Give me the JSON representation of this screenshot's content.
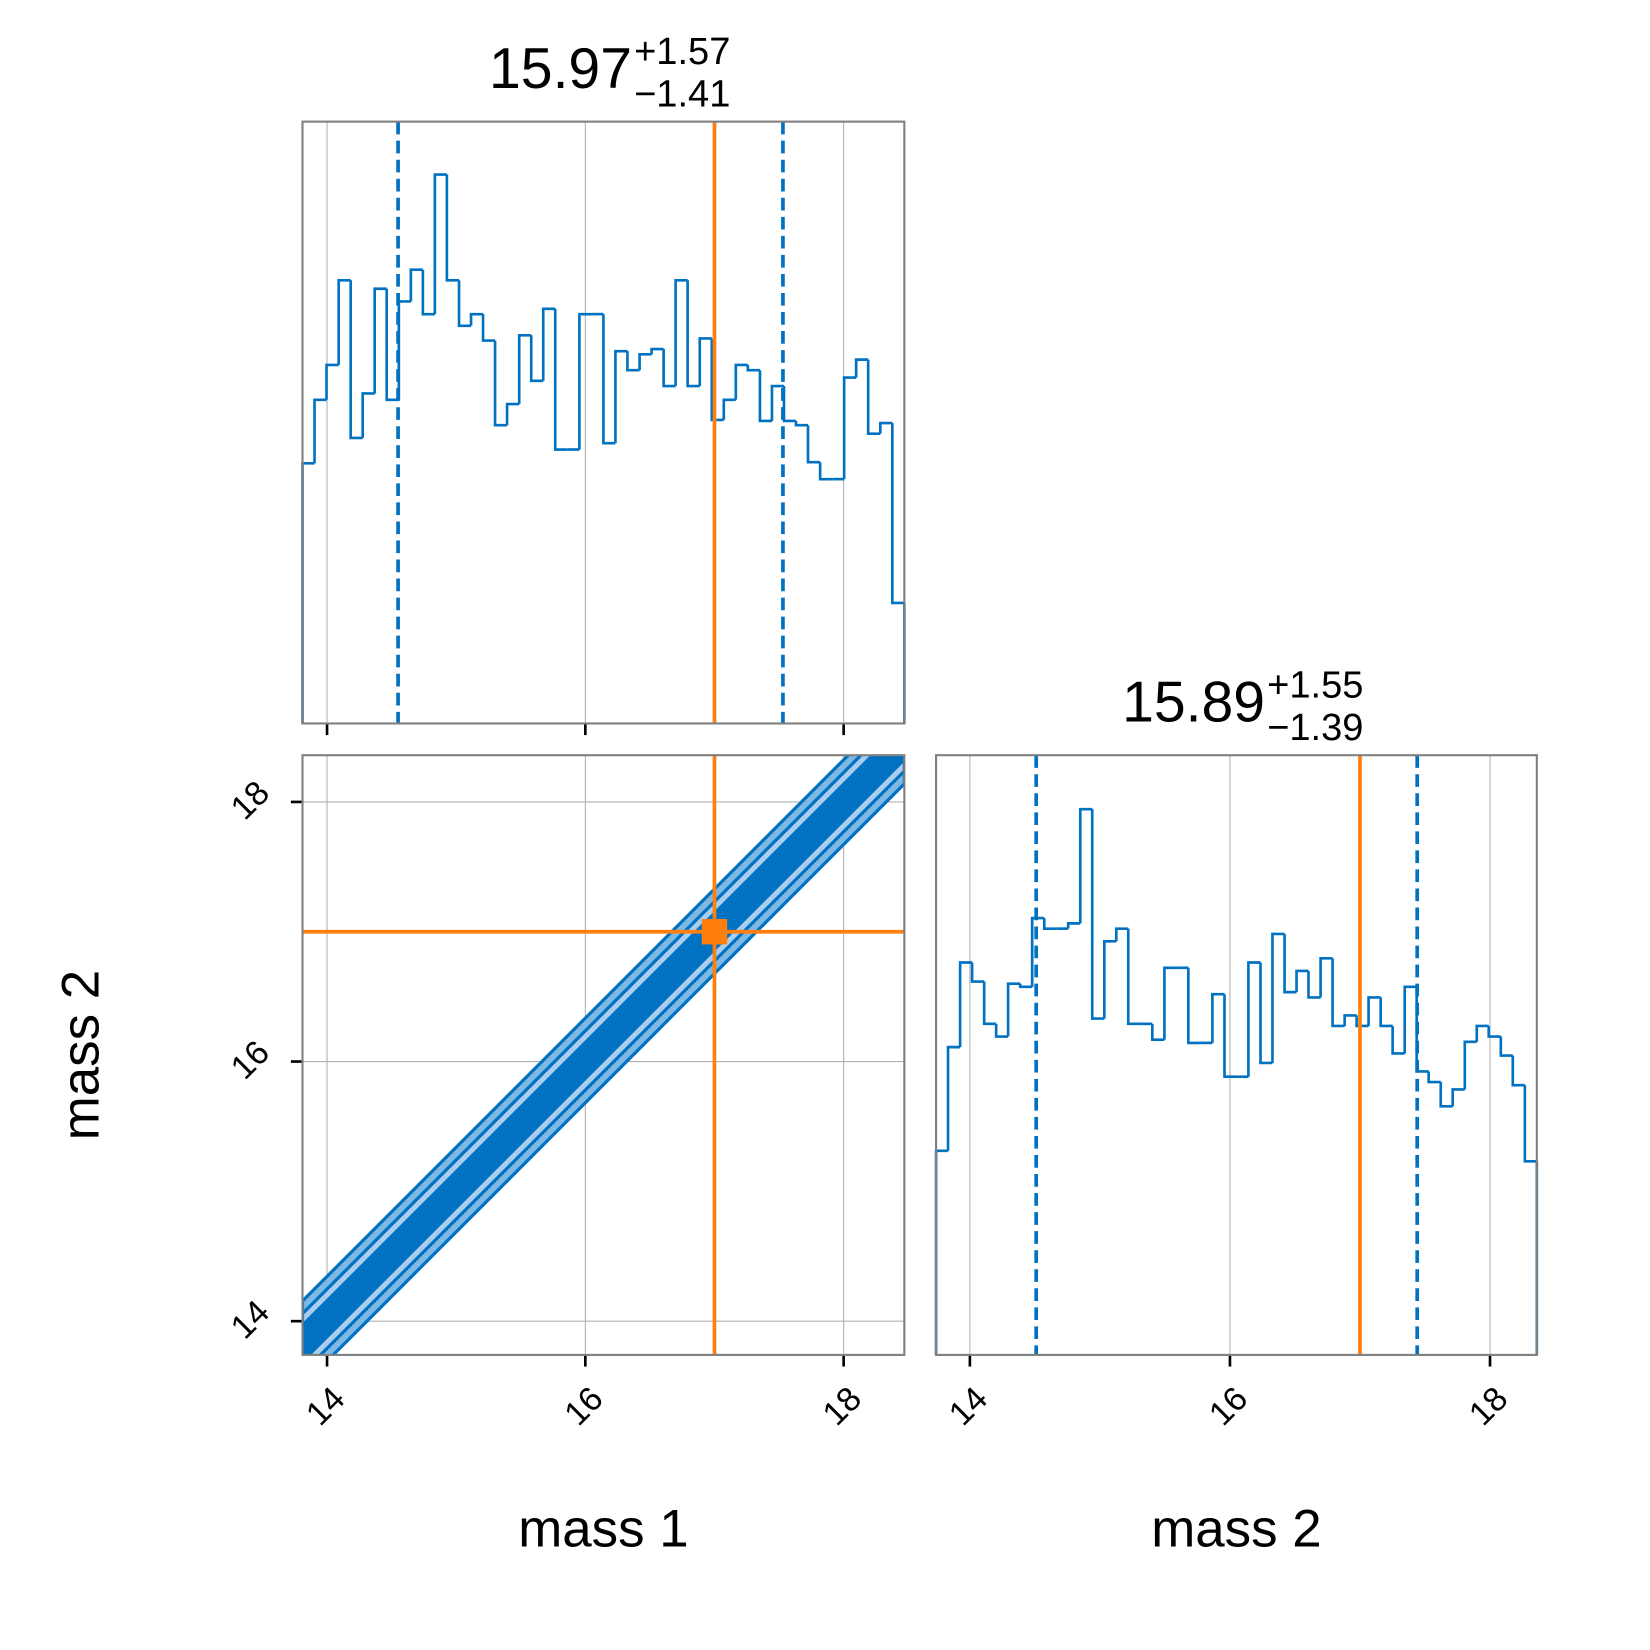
{
  "chart_data": [
    {
      "type": "histogram",
      "title": {
        "value": "15.97",
        "upper": "+1.57",
        "lower": "−1.41"
      },
      "bins": [
        13.81,
        13.903,
        13.996,
        14.09,
        14.183,
        14.276,
        14.369,
        14.462,
        14.556,
        14.649,
        14.742,
        14.835,
        14.928,
        15.022,
        15.115,
        15.208,
        15.301,
        15.394,
        15.488,
        15.581,
        15.674,
        15.767,
        15.86,
        15.954,
        16.047,
        16.14,
        16.233,
        16.326,
        16.42,
        16.513,
        16.606,
        16.699,
        16.792,
        16.886,
        16.979,
        17.072,
        17.165,
        17.258,
        17.352,
        17.445,
        17.538,
        17.631,
        17.724,
        17.818,
        17.911,
        18.004,
        18.097,
        18.19,
        18.284,
        18.377,
        18.47
      ],
      "values": [
        246,
        306,
        339,
        419,
        270,
        312,
        411,
        306,
        399,
        429,
        387,
        519,
        419,
        376,
        387,
        362,
        282,
        302,
        367,
        324,
        392,
        259,
        259,
        387,
        387,
        265,
        352,
        334,
        349,
        354,
        319,
        419,
        319,
        364,
        287,
        306,
        339,
        334,
        286,
        319,
        286,
        282,
        247,
        231,
        231,
        327,
        344,
        274,
        284,
        114
      ],
      "color": "#0072c1",
      "xlim": [
        13.81,
        18.47
      ],
      "ylim": [
        0,
        569
      ],
      "xticks": [
        14,
        16,
        18
      ],
      "quantiles": [
        14.55,
        17.53
      ],
      "truth": 17,
      "truth_color": "#ff7f0e",
      "grid": true,
      "xtick_labels": false
    },
    {
      "type": "contour",
      "xlabel": "mass 1",
      "ylabel": "mass 2",
      "xlim": [
        13.81,
        18.47
      ],
      "ylim": [
        13.74,
        18.36
      ],
      "xticks": [
        14,
        16,
        18
      ],
      "yticks": [
        14,
        16,
        18
      ],
      "truth": [
        17,
        17
      ],
      "truth_color": "#ff7f0e",
      "grid": true,
      "xtick_labels": true
    },
    {
      "type": "histogram",
      "title": {
        "value": "15.89",
        "upper": "+1.55",
        "lower": "−1.39"
      },
      "xlabel": "mass 2",
      "bins": [
        13.74,
        13.832,
        13.925,
        14.017,
        14.11,
        14.202,
        14.294,
        14.387,
        14.479,
        14.572,
        14.664,
        14.756,
        14.849,
        14.941,
        15.034,
        15.126,
        15.218,
        15.311,
        15.403,
        15.496,
        15.588,
        15.68,
        15.773,
        15.865,
        15.958,
        16.05,
        16.142,
        16.235,
        16.327,
        16.42,
        16.512,
        16.604,
        16.697,
        16.789,
        16.882,
        16.974,
        17.066,
        17.159,
        17.251,
        17.344,
        17.436,
        17.528,
        17.621,
        17.713,
        17.806,
        17.898,
        17.99,
        18.083,
        18.175,
        18.268,
        18.36
      ],
      "values": [
        193,
        291,
        371,
        353,
        313,
        301,
        351,
        348,
        413,
        403,
        403,
        408,
        516,
        318,
        391,
        403,
        313,
        313,
        298,
        366,
        366,
        295,
        295,
        341,
        263,
        263,
        371,
        276,
        398,
        343,
        363,
        338,
        375,
        311,
        321,
        311,
        338,
        311,
        285,
        348,
        268,
        258,
        235,
        251,
        296,
        311,
        301,
        283,
        255,
        183
      ],
      "color": "#0072c1",
      "xlim": [
        13.74,
        18.36
      ],
      "ylim": [
        0,
        567
      ],
      "xticks": [
        14,
        16,
        18
      ],
      "quantiles": [
        14.51,
        17.44
      ],
      "truth": 17,
      "truth_color": "#ff7f0e",
      "grid": true,
      "xtick_labels": true
    }
  ]
}
